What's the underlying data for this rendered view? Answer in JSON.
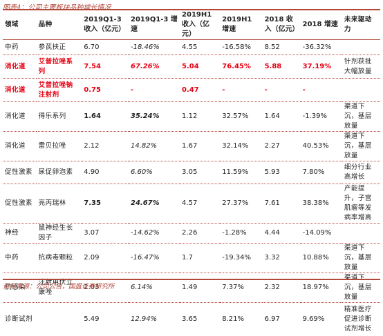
{
  "caption": "图表4：公司主要板块品种增长情况",
  "source": "资料来源：公司公告，国盛证券研究所",
  "headers": {
    "domain": "领域",
    "product": "品种",
    "v1": "2019Q1-3 收入（亿元）",
    "g1": "2019Q1-3 增速",
    "v2": "2019H1 收入（亿元）",
    "g2": "2019H1 增速",
    "v3": "2018 收入（亿元）",
    "g3": "2018 增速",
    "driver": "未来驱动力"
  },
  "rows": [
    {
      "domain": "中药",
      "product": "参芪扶正",
      "v1": "6.70",
      "g1": "-18.46%",
      "v2": "4.55",
      "g2": "-16.58%",
      "v3": "8.52",
      "g3": "-36.32%",
      "driver": ""
    },
    {
      "domain": "消化道",
      "product": "艾普拉唑系列",
      "v1": "7.54",
      "g1": "67.26%",
      "v2": "5.04",
      "g2": "76.45%",
      "v3": "5.88",
      "g3": "37.19%",
      "driver": "针剂获批大幅放量"
    },
    {
      "domain": "消化道",
      "product": "艾普拉唑钠注射剂",
      "v1": "0.75",
      "g1": "-",
      "v2": "0.47",
      "g2": "-",
      "v3": "-",
      "g3": "-",
      "driver": ""
    },
    {
      "domain": "消化道",
      "product": "得乐系列",
      "v1": "1.64",
      "g1": "35.24%",
      "v2": "1.12",
      "g2": "32.57%",
      "v3": "1.64",
      "g3": "-1.39%",
      "driver": "渠道下沉，基层放量"
    },
    {
      "domain": "消化道",
      "product": "雷贝拉唑",
      "v1": "2.12",
      "g1": "14.82%",
      "v2": "1.67",
      "g2": "32.14%",
      "v3": "2.27",
      "g3": "40.53%",
      "driver": "渠道下沉，基层放量"
    },
    {
      "domain": "促性激素",
      "product": "尿促卵泡素",
      "v1": "4.90",
      "g1": "6.60%",
      "v2": "3.05",
      "g2": "11.59%",
      "v3": "5.93",
      "g3": "7.80%",
      "driver": "细分行业高增长"
    },
    {
      "domain": "促性激素",
      "product": "亮丙瑞林",
      "v1": "7.35",
      "g1": "24.67%",
      "v2": "4.57",
      "g2": "27.37%",
      "v3": "7.61",
      "g3": "38.38%",
      "driver": "产能提升，子宫肌瘤等发病率增高"
    },
    {
      "domain": "神经",
      "product": "鼠神经生长因子",
      "v1": "3.07",
      "g1": "-14.62%",
      "v2": "2.26",
      "g2": "-1.28%",
      "v3": "4.44",
      "g3": "-14.09%",
      "driver": ""
    },
    {
      "domain": "中药",
      "product": "抗病毒颗粒",
      "v1": "2.09",
      "g1": "-16.47%",
      "v2": "1.7",
      "g2": "-19.34%",
      "v3": "3.32",
      "g3": "10.88%",
      "driver": "渠道下沉，基层放量"
    },
    {
      "domain": "抗感染",
      "product": "注射用伏立康唑",
      "v1": "2.03",
      "g1": "6.14%",
      "v2": "1.49",
      "g2": "7.37%",
      "v3": "2.32",
      "g3": "18.97%",
      "driver": "渠道下沉，基层放量"
    },
    {
      "domain": "诊断试剂",
      "product": "",
      "v1": "5.49",
      "g1": "12.94%",
      "v2": "3.65",
      "g2": "8.21%",
      "v3": "6.97",
      "g3": "9.69%",
      "driver": "精准医疗促进诊断试剂增长"
    }
  ],
  "colors": {
    "accent": "#b3473a",
    "highlight": "#e60012"
  }
}
